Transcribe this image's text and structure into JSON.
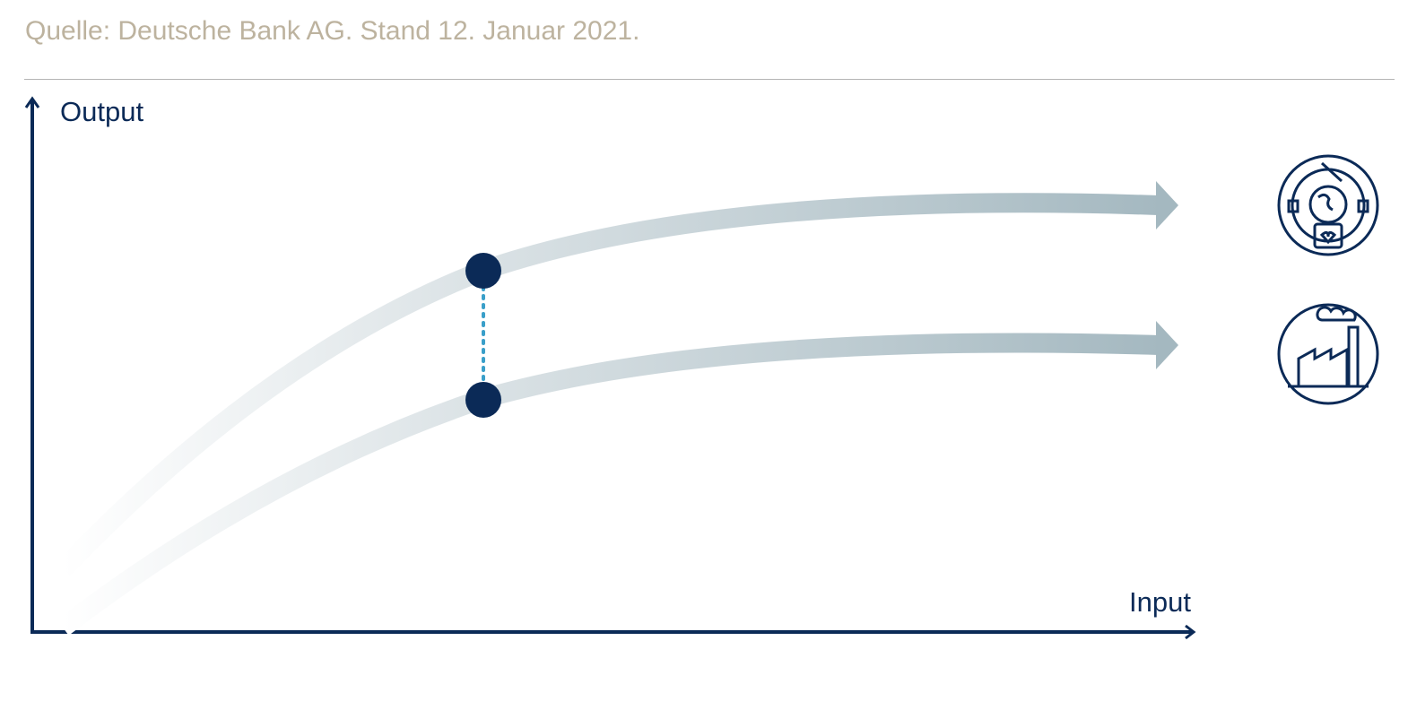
{
  "source": "Quelle: Deutsche Bank AG. Stand 12. Januar 2021.",
  "axes": {
    "y_label": "Output",
    "x_label": "Input"
  }
}
